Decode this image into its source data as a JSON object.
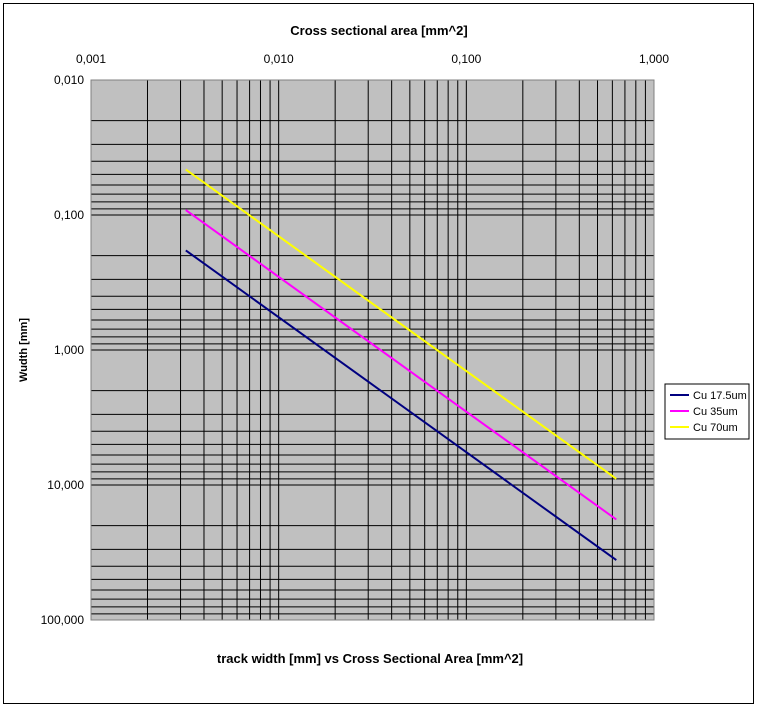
{
  "chart_data": {
    "type": "line",
    "title": "track width [mm] vs Cross Sectional Area [mm^2]",
    "top_axis_label": "Cross sectional area [mm^2]",
    "ylabel": "Wudth [mm]",
    "x_scale": "log",
    "y_scale": "log",
    "y_reversed": true,
    "xlim": [
      0.001,
      1.0
    ],
    "ylim": [
      0.01,
      100.0
    ],
    "x_ticks": [
      0.001,
      0.01,
      0.1,
      1.0
    ],
    "x_tick_labels": [
      "0,001",
      "0,010",
      "0,100",
      "1,000"
    ],
    "y_ticks": [
      0.01,
      0.1,
      1.0,
      10.0,
      100.0
    ],
    "y_tick_labels": [
      "0,010",
      "0,100",
      "1,000",
      "10,000",
      "100,000"
    ],
    "grid": true,
    "legend_position": "right",
    "plot_background": "#c0c0c0",
    "series": [
      {
        "name": "Cu 17.5um",
        "color": "#000080",
        "x": [
          0.0032,
          0.63
        ],
        "y": [
          0.183,
          36.0
        ]
      },
      {
        "name": "Cu 35um",
        "color": "#ff00ff",
        "x": [
          0.0032,
          0.63
        ],
        "y": [
          0.092,
          18.0
        ]
      },
      {
        "name": "Cu 70um",
        "color": "#ffff00",
        "x": [
          0.0032,
          0.63
        ],
        "y": [
          0.046,
          9.0
        ]
      }
    ]
  }
}
